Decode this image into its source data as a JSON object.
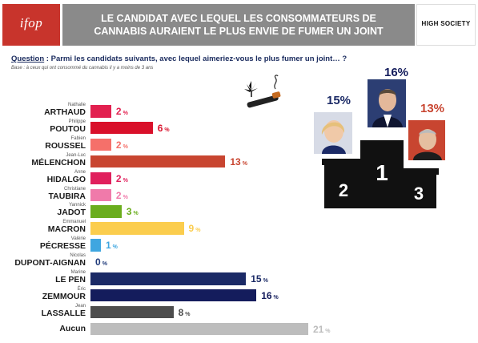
{
  "header": {
    "logo": "ifop",
    "title": "LE CANDIDAT AVEC LEQUEL LES CONSOMMATEURS DE CANNABIS AURAIENT LE PLUS ENVIE DE FUMER UN JOINT",
    "brand": "HIGH SOCIETY"
  },
  "question": {
    "label": "Question",
    "text": " : Parmi les candidats suivants, avec lequel aimeriez-vous le plus fumer un joint… ?",
    "base": "Base : à ceux qui ont consommé du cannabis il y a moins de 3 ans"
  },
  "colors": {
    "header_bg": "#8a8a8a",
    "logo_bg": "#c8342c",
    "question_text": "#1a2b5e"
  },
  "icons": [
    "cannabis-joint-icon",
    "podium-icon"
  ],
  "podium": {
    "places": [
      "1",
      "2",
      "3"
    ],
    "percent_first": "16%",
    "percent_second": "15%",
    "percent_third": "13%"
  },
  "chart_data": {
    "type": "bar",
    "orientation": "horizontal",
    "unit": "%",
    "categories": [
      {
        "first": "Nathalie",
        "last": "ARTHAUD",
        "value": 2,
        "color": "#e2204f"
      },
      {
        "first": "Philippe",
        "last": "POUTOU",
        "value": 6,
        "color": "#d9102a"
      },
      {
        "first": "Fabien",
        "last": "ROUSSEL",
        "value": 2,
        "color": "#f5706a"
      },
      {
        "first": "Jean-Luc",
        "last": "MÉLENCHON",
        "value": 13,
        "color": "#c84530"
      },
      {
        "first": "Anne",
        "last": "HIDALGO",
        "value": 2,
        "color": "#e0205d"
      },
      {
        "first": "Christiane",
        "last": "TAUBIRA",
        "value": 2,
        "color": "#f07aaa"
      },
      {
        "first": "Yannick",
        "last": "JADOT",
        "value": 3,
        "color": "#6aad1d"
      },
      {
        "first": "Emmanuel",
        "last": "MACRON",
        "value": 9,
        "color": "#fbcd4e"
      },
      {
        "first": "Valérie",
        "last": "PÉCRESSE",
        "value": 1,
        "color": "#3fa6e0"
      },
      {
        "first": "Nicolas",
        "last": "DUPONT-AIGNAN",
        "value": 0,
        "color": "#1f3a7a"
      },
      {
        "first": "Marine",
        "last": "LE PEN",
        "value": 15,
        "color": "#1b2a66"
      },
      {
        "first": "Éric",
        "last": "ZEMMOUR",
        "value": 16,
        "color": "#141c5c"
      },
      {
        "first": "Jean",
        "last": "LASSALLE",
        "value": 8,
        "color": "#4d4d4d"
      },
      {
        "first": "",
        "last": "Aucun",
        "value": 21,
        "color": "#bdbdbd"
      }
    ]
  }
}
